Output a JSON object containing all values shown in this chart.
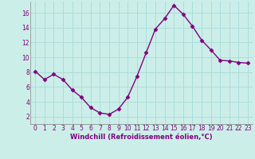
{
  "x": [
    0,
    1,
    2,
    3,
    4,
    5,
    6,
    7,
    8,
    9,
    10,
    11,
    12,
    13,
    14,
    15,
    16,
    17,
    18,
    19,
    20,
    21,
    22,
    23
  ],
  "y": [
    8.1,
    7.0,
    7.7,
    7.0,
    5.6,
    4.6,
    3.2,
    2.5,
    2.3,
    3.0,
    4.6,
    7.4,
    10.6,
    13.8,
    15.2,
    17.0,
    15.8,
    14.2,
    12.3,
    11.0,
    9.6,
    9.5,
    9.3,
    9.2
  ],
  "line_color": "#800080",
  "marker": "D",
  "marker_size": 2.5,
  "bg_color": "#cceee8",
  "grid_color": "#aaddda",
  "xlabel": "Windchill (Refroidissement éolien,°C)",
  "ylim": [
    1,
    17.5
  ],
  "xlim": [
    -0.5,
    23.5
  ],
  "yticks": [
    2,
    4,
    6,
    8,
    10,
    12,
    14,
    16
  ],
  "xticks": [
    0,
    1,
    2,
    3,
    4,
    5,
    6,
    7,
    8,
    9,
    10,
    11,
    12,
    13,
    14,
    15,
    16,
    17,
    18,
    19,
    20,
    21,
    22,
    23
  ],
  "tick_color": "#800080",
  "label_color": "#800080",
  "spine_color": "#808080",
  "tick_fontsize": 5.5,
  "xlabel_fontsize": 6.0,
  "linewidth": 1.0
}
